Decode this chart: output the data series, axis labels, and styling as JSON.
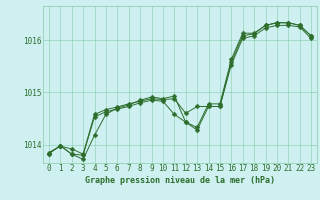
{
  "title": "Graphe pression niveau de la mer (hPa)",
  "bg_color": "#cff0f0",
  "plot_bg_color": "#cff0f0",
  "line_color": "#2d6e2d",
  "grid_color": "#88ccaa",
  "xlim": [
    -0.5,
    23.5
  ],
  "ylim": [
    1013.65,
    1016.65
  ],
  "yticks": [
    1014,
    1015,
    1016
  ],
  "xticks": [
    0,
    1,
    2,
    3,
    4,
    5,
    6,
    7,
    8,
    9,
    10,
    11,
    12,
    13,
    14,
    15,
    16,
    17,
    18,
    19,
    20,
    21,
    22,
    23
  ],
  "series1_x": [
    0,
    1,
    2,
    3,
    4,
    5,
    6,
    7,
    8,
    9,
    10,
    11,
    12,
    13,
    14,
    15,
    16,
    17,
    18,
    19,
    20,
    21,
    22,
    23
  ],
  "series1_y": [
    1013.85,
    1013.97,
    1013.92,
    1013.82,
    1014.58,
    1014.67,
    1014.72,
    1014.78,
    1014.83,
    1014.88,
    1014.86,
    1014.88,
    1014.6,
    1014.73,
    1014.73,
    1014.73,
    1015.58,
    1016.08,
    1016.12,
    1016.28,
    1016.33,
    1016.33,
    1016.28,
    1016.08
  ],
  "series2_x": [
    0,
    1,
    2,
    3,
    4,
    5,
    6,
    7,
    8,
    9,
    10,
    11,
    12,
    13,
    14,
    15,
    16,
    17,
    18,
    19,
    20,
    21,
    22,
    23
  ],
  "series2_y": [
    1013.83,
    1013.98,
    1013.82,
    1013.8,
    1014.53,
    1014.63,
    1014.68,
    1014.73,
    1014.8,
    1014.85,
    1014.83,
    1014.58,
    1014.43,
    1014.28,
    1014.73,
    1014.73,
    1015.53,
    1016.03,
    1016.08,
    1016.23,
    1016.28,
    1016.28,
    1016.25,
    1016.03
  ],
  "series3_x": [
    0,
    1,
    2,
    3,
    4,
    5,
    6,
    7,
    8,
    9,
    10,
    11,
    12,
    13,
    14,
    15,
    16,
    17,
    18,
    19,
    20,
    21,
    22,
    23
  ],
  "series3_y": [
    1013.83,
    1013.98,
    1013.82,
    1013.72,
    1014.18,
    1014.58,
    1014.7,
    1014.76,
    1014.85,
    1014.91,
    1014.88,
    1014.93,
    1014.43,
    1014.33,
    1014.78,
    1014.78,
    1015.63,
    1016.13,
    1016.13,
    1016.28,
    1016.33,
    1016.33,
    1016.28,
    1016.08
  ],
  "marker_size": 2.5,
  "linewidth": 0.7,
  "tick_fontsize": 5.5,
  "xlabel_fontsize": 6.0
}
